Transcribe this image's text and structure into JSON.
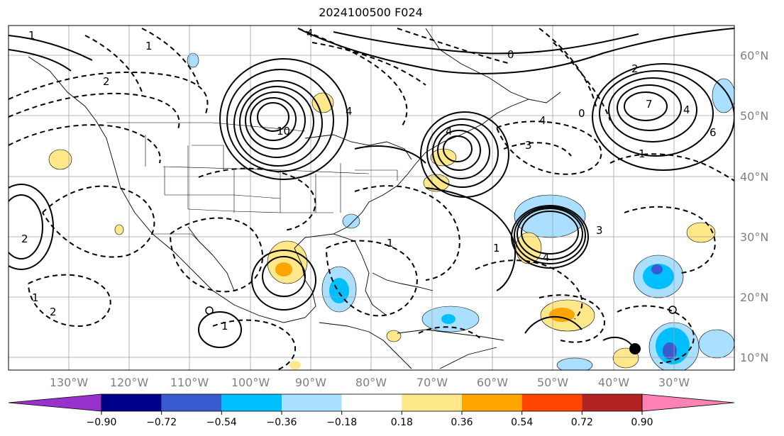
{
  "title": "2024100500 F024",
  "lat_labels": [
    "60°N",
    "50°N",
    "40°N",
    "30°N",
    "20°N",
    "10°N"
  ],
  "lon_labels": [
    "130°W",
    "120°W",
    "110°W",
    "100°W",
    "90°W",
    "80°W",
    "70°W",
    "60°W",
    "50°W",
    "40°W",
    "30°W"
  ],
  "colorbar": {
    "ticks": [
      "−0.90",
      "−0.72",
      "−0.54",
      "−0.36",
      "−0.18",
      "0.18",
      "0.36",
      "0.54",
      "0.72",
      "0.90"
    ],
    "colors": [
      "#9932cc",
      "#00008b",
      "#3a5ad0",
      "#00bfff",
      "#aadfff",
      "#ffffff",
      "#ffe88a",
      "#ffa500",
      "#ff4500",
      "#b22222",
      "#ff82b4"
    ]
  },
  "contour_labels": [
    "1",
    "1",
    "4",
    "4",
    "0",
    "2",
    "10",
    "4",
    "1",
    "3",
    "1",
    "4",
    "1",
    "2",
    "4",
    "0",
    "3",
    "1",
    "2",
    "7",
    "4",
    "6",
    "2",
    "1"
  ]
}
